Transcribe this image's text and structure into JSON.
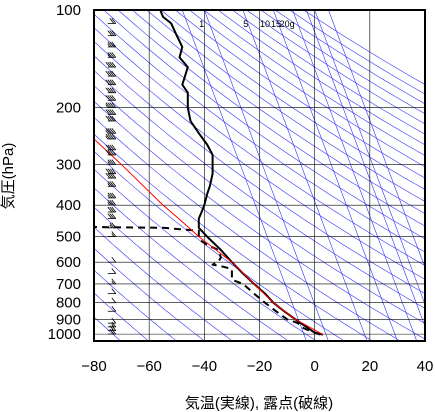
{
  "chart_data": {
    "type": "line",
    "title": "",
    "xlabel": "気温(実線), 露点(破線)",
    "ylabel": "気圧(hPa)",
    "x_scale": "linear",
    "y_scale": "log",
    "xlim": [
      -80,
      40
    ],
    "ylim": [
      1050,
      100
    ],
    "x_ticks": [
      -80,
      -60,
      -40,
      -20,
      0,
      20,
      40
    ],
    "y_ticks": [
      100,
      200,
      300,
      400,
      500,
      600,
      700,
      800,
      900,
      1000
    ],
    "mixing_ratio_labels": [
      "1",
      "5",
      "10",
      "15",
      "20g"
    ],
    "grid": true,
    "colors": {
      "temperature": "#000000",
      "dewpoint": "#000000",
      "parcel_path": "#ff0000",
      "background_lines": "#3333ff",
      "grid": "#000000"
    },
    "series": [
      {
        "style": "solid",
        "points": [
          {
            "p": 1003,
            "t": 3
          },
          {
            "p": 990,
            "t": 0
          },
          {
            "p": 950,
            "t": -3
          },
          {
            "p": 925,
            "t": -5
          },
          {
            "p": 900,
            "t": -7
          },
          {
            "p": 850,
            "t": -11
          },
          {
            "p": 800,
            "t": -15
          },
          {
            "p": 750,
            "t": -18
          },
          {
            "p": 700,
            "t": -22
          },
          {
            "p": 650,
            "t": -26
          },
          {
            "p": 600,
            "t": -30
          },
          {
            "p": 550,
            "t": -34
          },
          {
            "p": 500,
            "t": -39
          },
          {
            "p": 470,
            "t": -42
          },
          {
            "p": 440,
            "t": -42
          },
          {
            "p": 420,
            "t": -41
          },
          {
            "p": 400,
            "t": -40
          },
          {
            "p": 370,
            "t": -39
          },
          {
            "p": 350,
            "t": -38
          },
          {
            "p": 320,
            "t": -37
          },
          {
            "p": 300,
            "t": -37
          },
          {
            "p": 280,
            "t": -37
          },
          {
            "p": 260,
            "t": -39
          },
          {
            "p": 240,
            "t": -42
          },
          {
            "p": 220,
            "t": -45
          },
          {
            "p": 200,
            "t": -46
          },
          {
            "p": 180,
            "t": -46
          },
          {
            "p": 170,
            "t": -48
          },
          {
            "p": 160,
            "t": -47
          },
          {
            "p": 150,
            "t": -46
          },
          {
            "p": 140,
            "t": -49
          },
          {
            "p": 130,
            "t": -48
          },
          {
            "p": 120,
            "t": -50
          },
          {
            "p": 110,
            "t": -52
          },
          {
            "p": 105,
            "t": -55
          },
          {
            "p": 100,
            "t": -56
          }
        ]
      },
      {
        "style": "dashed",
        "points": [
          {
            "p": 1003,
            "t": 2
          },
          {
            "p": 975,
            "t": -2
          },
          {
            "p": 950,
            "t": -5
          },
          {
            "p": 925,
            "t": -6
          },
          {
            "p": 900,
            "t": -10
          },
          {
            "p": 850,
            "t": -14
          },
          {
            "p": 800,
            "t": -18
          },
          {
            "p": 750,
            "t": -22
          },
          {
            "p": 700,
            "t": -26
          },
          {
            "p": 680,
            "t": -30
          },
          {
            "p": 650,
            "t": -30
          },
          {
            "p": 630,
            "t": -30
          },
          {
            "p": 620,
            "t": -33
          },
          {
            "p": 610,
            "t": -37
          },
          {
            "p": 600,
            "t": -35
          },
          {
            "p": 580,
            "t": -34
          },
          {
            "p": 550,
            "t": -35
          },
          {
            "p": 530,
            "t": -39
          },
          {
            "p": 510,
            "t": -42
          },
          {
            "p": 490,
            "t": -42
          },
          {
            "p": 480,
            "t": -42
          },
          {
            "p": 470,
            "t": -55
          },
          {
            "p": 468,
            "t": -75
          },
          {
            "p": 467,
            "t": -80
          }
        ]
      },
      {
        "style": "solid",
        "color": "#ff0000",
        "points": [
          {
            "p": 1003,
            "t": 3
          },
          {
            "p": 900,
            "t": -7
          },
          {
            "p": 800,
            "t": -15
          },
          {
            "p": 700,
            "t": -22
          },
          {
            "p": 600,
            "t": -30
          },
          {
            "p": 500,
            "t": -42
          },
          {
            "p": 450,
            "t": -48
          },
          {
            "p": 400,
            "t": -55
          },
          {
            "p": 350,
            "t": -62
          },
          {
            "p": 300,
            "t": -70
          },
          {
            "p": 250,
            "t": -80
          }
        ]
      }
    ],
    "wind_barbs": [
      {
        "p": 1000,
        "speed_kt": 20
      },
      {
        "p": 975,
        "speed_kt": 20
      },
      {
        "p": 950,
        "speed_kt": 15
      },
      {
        "p": 925,
        "speed_kt": 10
      },
      {
        "p": 850,
        "speed_kt": 10
      },
      {
        "p": 800,
        "speed_kt": 10
      },
      {
        "p": 750,
        "speed_kt": 10
      },
      {
        "p": 700,
        "speed_kt": 15
      },
      {
        "p": 650,
        "speed_kt": 10
      },
      {
        "p": 600,
        "speed_kt": 10
      },
      {
        "p": 500,
        "speed_kt": 15
      },
      {
        "p": 470,
        "speed_kt": 25
      },
      {
        "p": 440,
        "speed_kt": 30
      },
      {
        "p": 420,
        "speed_kt": 30
      },
      {
        "p": 400,
        "speed_kt": 35
      },
      {
        "p": 380,
        "speed_kt": 35
      },
      {
        "p": 350,
        "speed_kt": 35
      },
      {
        "p": 330,
        "speed_kt": 40
      },
      {
        "p": 320,
        "speed_kt": 40
      },
      {
        "p": 300,
        "speed_kt": 35
      },
      {
        "p": 280,
        "speed_kt": 40
      },
      {
        "p": 270,
        "speed_kt": 40
      },
      {
        "p": 250,
        "speed_kt": 45
      },
      {
        "p": 240,
        "speed_kt": 45
      },
      {
        "p": 220,
        "speed_kt": 40
      },
      {
        "p": 210,
        "speed_kt": 40
      },
      {
        "p": 200,
        "speed_kt": 45
      },
      {
        "p": 190,
        "speed_kt": 40
      },
      {
        "p": 180,
        "speed_kt": 40
      },
      {
        "p": 170,
        "speed_kt": 40
      },
      {
        "p": 160,
        "speed_kt": 40
      },
      {
        "p": 150,
        "speed_kt": 40
      },
      {
        "p": 140,
        "speed_kt": 35
      },
      {
        "p": 130,
        "speed_kt": 35
      },
      {
        "p": 120,
        "speed_kt": 30
      },
      {
        "p": 110,
        "speed_kt": 20
      },
      {
        "p": 100,
        "speed_kt": 20
      }
    ]
  }
}
